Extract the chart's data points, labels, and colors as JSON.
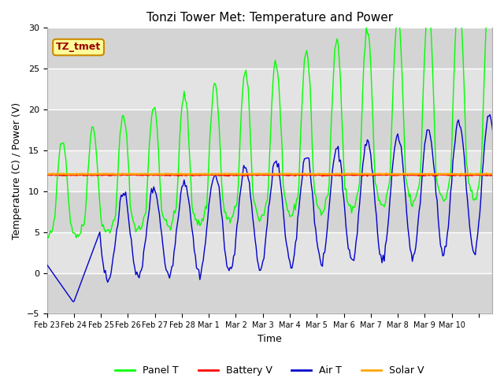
{
  "title": "Tonzi Tower Met: Temperature and Power",
  "xlabel": "Time",
  "ylabel": "Temperature (C) / Power (V)",
  "ylim": [
    -5,
    30
  ],
  "label_box_text": "TZ_tmet",
  "label_box_bg": "#FFFF99",
  "label_box_edge": "#CC8800",
  "label_box_text_color": "#990000",
  "background_color": "#FFFFFF",
  "plot_bg_color": "#E8E8E8",
  "grid_color": "#FFFFFF",
  "legend_labels": [
    "Panel T",
    "Battery V",
    "Air T",
    "Solar V"
  ],
  "legend_colors": [
    "#00FF00",
    "#FF0000",
    "#0000CC",
    "#FFA500"
  ],
  "xtick_labels": [
    "Feb 23",
    "Feb 24",
    "Feb 25",
    "Feb 26",
    "Feb 27",
    "Feb 28",
    "Mar 1",
    "Mar 2",
    "Mar 3",
    "Mar 4",
    "Mar 5",
    "Mar 6",
    "Mar 7",
    "Mar 8",
    "Mar 9",
    "Mar 10"
  ],
  "ytick_values": [
    -5,
    0,
    5,
    10,
    15,
    20,
    25,
    30
  ],
  "battery_v": 12.0,
  "solar_v": 12.1,
  "band_colors": [
    "#C8C8C8",
    "#D8D8D8"
  ]
}
